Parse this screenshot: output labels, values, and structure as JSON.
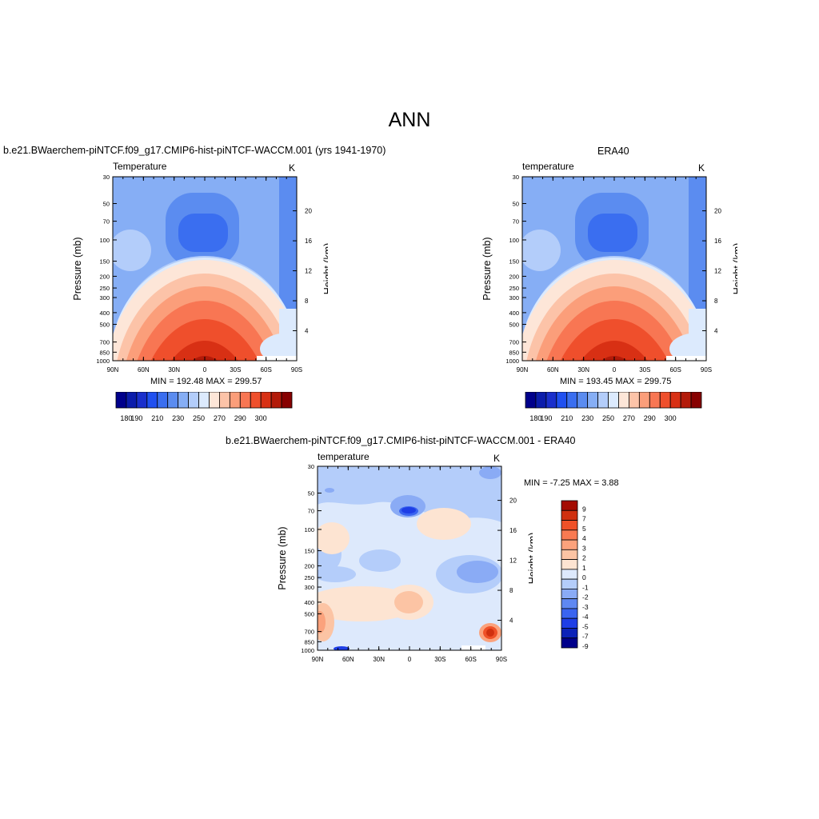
{
  "main_title": "ANN",
  "palettes": {
    "abs": [
      "#00008b",
      "#0b1cab",
      "#1a2fcc",
      "#2050f0",
      "#3a6ef0",
      "#5b8cf0",
      "#86aef5",
      "#b3cdfa",
      "#dceafd",
      "#fde6d8",
      "#fcc3a8",
      "#fb9e7a",
      "#f87653",
      "#ef4f2c",
      "#d83014",
      "#b31a09",
      "#870000"
    ],
    "diff": [
      "#00008b",
      "#0b22b8",
      "#1e3ee6",
      "#3a64f0",
      "#5f88f2",
      "#8aabf5",
      "#b4cdfa",
      "#dde9fc",
      "#fde4d2",
      "#fcc4a4",
      "#fba27c",
      "#f87a52",
      "#ef5128",
      "#d0300f",
      "#a40c02"
    ]
  },
  "chart_data": [
    {
      "type": "heatmap",
      "title": "b.e21.BWaerchem-piNTCF.f09_g17.CMIP6-hist-piNTCF-WACCM.001 (yrs 1941-1970)",
      "variable": "Temperature",
      "units": "K",
      "xlabel": "",
      "ylabel": "Pressure (mb)",
      "ylabel_right": "Height (km)",
      "x_ticks": [
        "90N",
        "60N",
        "30N",
        "0",
        "30S",
        "60S",
        "90S"
      ],
      "y_ticks": [
        30,
        50,
        70,
        100,
        150,
        200,
        250,
        300,
        400,
        500,
        700,
        850,
        1000
      ],
      "right_ticks": [
        20,
        16,
        12,
        8,
        4
      ],
      "ylim": [
        1000,
        30
      ],
      "log_y": true,
      "min": 192.48,
      "max": 299.57,
      "minmax_label": "MIN = 192.48  MAX = 299.57",
      "contour_levels": [
        180,
        185,
        190,
        195,
        200,
        210,
        220,
        230,
        240,
        250,
        260,
        270,
        280,
        290,
        295,
        300
      ],
      "colorbar_labels": [
        "180",
        "190",
        "210",
        "230",
        "250",
        "270",
        "290",
        "300"
      ],
      "colorbar_orientation": "horizontal"
    },
    {
      "type": "heatmap",
      "title": "ERA40",
      "variable": "temperature",
      "units": "K",
      "xlabel": "",
      "ylabel": "Pressure (mb)",
      "ylabel_right": "Height (km)",
      "x_ticks": [
        "90N",
        "60N",
        "30N",
        "0",
        "30S",
        "60S",
        "90S"
      ],
      "y_ticks": [
        30,
        50,
        70,
        100,
        150,
        200,
        250,
        300,
        400,
        500,
        700,
        850,
        1000
      ],
      "right_ticks": [
        20,
        16,
        12,
        8,
        4
      ],
      "ylim": [
        1000,
        30
      ],
      "log_y": true,
      "min": 193.45,
      "max": 299.75,
      "minmax_label": "MIN = 193.45  MAX = 299.75",
      "contour_levels": [
        180,
        185,
        190,
        195,
        200,
        210,
        220,
        230,
        240,
        250,
        260,
        270,
        280,
        290,
        295,
        300
      ],
      "colorbar_labels": [
        "180",
        "190",
        "210",
        "230",
        "250",
        "270",
        "290",
        "300"
      ],
      "colorbar_orientation": "horizontal"
    },
    {
      "type": "heatmap",
      "title": "b.e21.BWaerchem-piNTCF.f09_g17.CMIP6-hist-piNTCF-WACCM.001 - ERA40",
      "variable": "temperature",
      "units": "K",
      "xlabel": "",
      "ylabel": "Pressure (mb)",
      "ylabel_right": "Height (km)",
      "x_ticks": [
        "90N",
        "60N",
        "30N",
        "0",
        "30S",
        "60S",
        "90S"
      ],
      "y_ticks": [
        30,
        50,
        70,
        100,
        150,
        200,
        250,
        300,
        400,
        500,
        700,
        850,
        1000
      ],
      "right_ticks": [
        20,
        16,
        12,
        8,
        4
      ],
      "ylim": [
        1000,
        30
      ],
      "log_y": true,
      "min": -7.25,
      "max": 3.88,
      "minmax_label": "MIN =  -7.25  MAX =   3.88",
      "contour_levels": [
        -9,
        -7,
        -5,
        -4,
        -3,
        -2,
        -1,
        0,
        1,
        2,
        3,
        4,
        5,
        7,
        9
      ],
      "colorbar_labels": [
        "9",
        "7",
        "5",
        "4",
        "3",
        "2",
        "1",
        "0",
        "-1",
        "-2",
        "-3",
        "-4",
        "-5",
        "-7",
        "-9"
      ],
      "colorbar_orientation": "vertical"
    }
  ]
}
